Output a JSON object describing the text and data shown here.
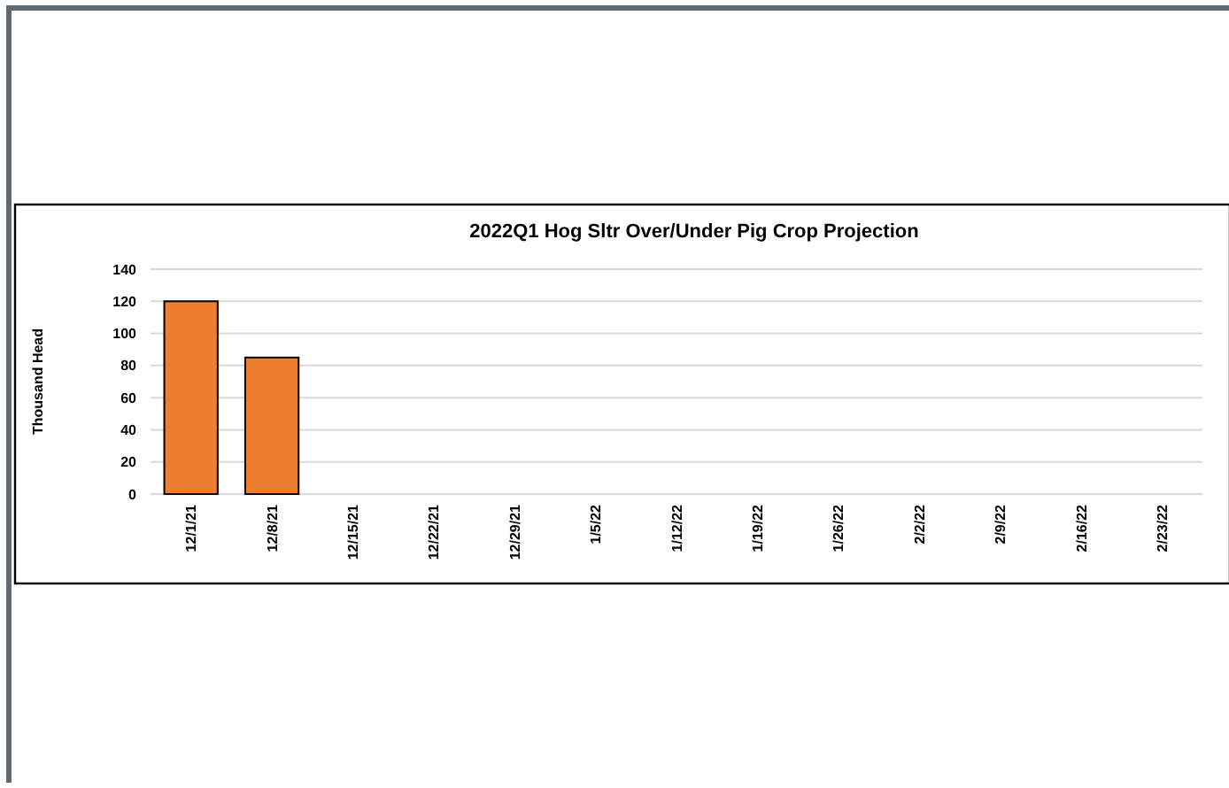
{
  "chart_data": {
    "type": "bar",
    "title": "2022Q1 Hog Sltr Over/Under Pig Crop Projection",
    "ylabel": "Thousand Head",
    "categories": [
      "12/1/21",
      "12/8/21",
      "12/15/21",
      "12/22/21",
      "12/29/21",
      "1/5/22",
      "1/12/22",
      "1/19/22",
      "1/26/22",
      "2/2/22",
      "2/9/22",
      "2/16/22",
      "2/23/22"
    ],
    "values": [
      120,
      85,
      null,
      null,
      null,
      null,
      null,
      null,
      null,
      null,
      null,
      null,
      null
    ],
    "color": "#ed7d31",
    "ylim": [
      0,
      140
    ],
    "yticks": [
      0,
      20,
      40,
      60,
      80,
      100,
      120,
      140
    ],
    "grid": "y"
  }
}
